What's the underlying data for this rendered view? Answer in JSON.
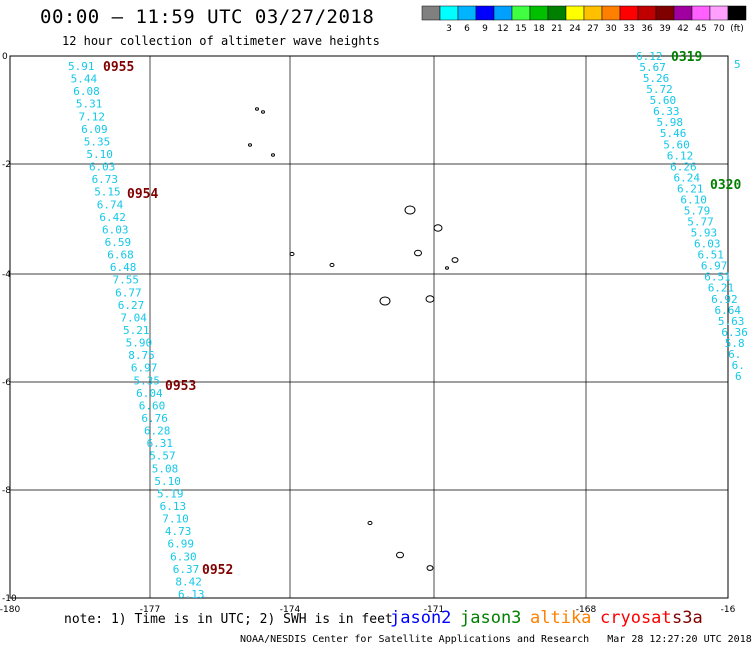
{
  "header": {
    "title": "00:00 – 11:59 UTC 03/27/2018",
    "subtitle": "12 hour collection of altimeter wave heights"
  },
  "legend": {
    "bins": [
      {
        "label": "",
        "color": "#808080"
      },
      {
        "label": "3",
        "color": "#00ffff"
      },
      {
        "label": "6",
        "color": "#00b4ff"
      },
      {
        "label": "9",
        "color": "#0000ff"
      },
      {
        "label": "12",
        "color": "#00a0ff"
      },
      {
        "label": "15",
        "color": "#40ff40"
      },
      {
        "label": "18",
        "color": "#00c000"
      },
      {
        "label": "21",
        "color": "#008000"
      },
      {
        "label": "24",
        "color": "#ffff00"
      },
      {
        "label": "27",
        "color": "#ffc000"
      },
      {
        "label": "30",
        "color": "#ff8000"
      },
      {
        "label": "33",
        "color": "#ff0000"
      },
      {
        "label": "36",
        "color": "#c00000"
      },
      {
        "label": "39",
        "color": "#800000"
      },
      {
        "label": "42",
        "color": "#a000a0"
      },
      {
        "label": "45",
        "color": "#ff60ff"
      },
      {
        "label": "70",
        "color": "#ffa0ff"
      },
      {
        "label": "(ft)",
        "color": "#000000"
      }
    ]
  },
  "axes": {
    "x_ticks": [
      "-180",
      "-177",
      "-174",
      "-171",
      "-168",
      "-16"
    ],
    "y_ticks": [
      "0",
      "-2",
      "-4",
      "-6",
      "-8",
      "-10"
    ]
  },
  "tracks": [
    {
      "satellite": "jason2",
      "values": [
        "5.91",
        "5.44",
        "6.08",
        "5.31",
        "7.12",
        "6.09",
        "5.35",
        "5.10",
        "6.03",
        "6.73",
        "5.15",
        "6.74",
        "6.42",
        "6.03",
        "6.59",
        "6.68",
        "6.48",
        "7.55",
        "6.77",
        "6.27",
        "7.04",
        "5.21",
        "5.90",
        "8.75",
        "6.97",
        "5.35",
        "6.04",
        "6.60",
        "6.76",
        "6.28",
        "6.31",
        "5.57",
        "5.08",
        "5.10",
        "5.19",
        "6.13",
        "7.10",
        "4.73",
        "6.99",
        "6.30",
        "6.37",
        "8.42",
        "6.13"
      ],
      "times": [
        {
          "label": "0955",
          "color": "#800000"
        },
        {
          "label": "0954",
          "color": "#800000"
        },
        {
          "label": "0953",
          "color": "#800000"
        },
        {
          "label": "0952",
          "color": "#800000"
        }
      ]
    },
    {
      "satellite": "jason3",
      "values": [
        "6.12",
        "5.67",
        "5.26",
        "5.72",
        "5.60",
        "6.33",
        "5.98",
        "5.46",
        "5.60",
        "6.12",
        "6.26",
        "6.24",
        "6.21",
        "6.10",
        "5.79",
        "5.77",
        "5.93",
        "6.03",
        "6.51",
        "6.97",
        "6.51",
        "6.21",
        "6.92",
        "6.64",
        "5.63",
        "6.36",
        "5.8",
        "6.",
        "6.",
        "6"
      ],
      "times": [
        {
          "label": "0319",
          "color": "#008000"
        },
        {
          "label": "0320",
          "color": "#008000"
        }
      ],
      "edge_value": "5"
    }
  ],
  "note": "note: 1) Time is in UTC; 2) SWH is in feet",
  "satellites": [
    {
      "name": "jason2",
      "color": "#0000ff"
    },
    {
      "name": "jason3",
      "color": "#008000"
    },
    {
      "name": "altika",
      "color": "#ff8000"
    },
    {
      "name": "cryosat",
      "color": "#ff0000"
    },
    {
      "name": "s3a",
      "color": "#800000"
    }
  ],
  "footer": "NOAA/NESDIS Center for Satellite Applications and Research   Mar 28 12:27:20 UTC 2018"
}
